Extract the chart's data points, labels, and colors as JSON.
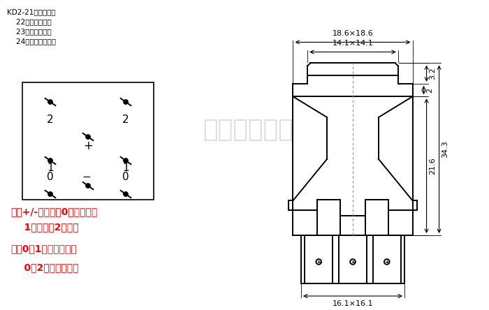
{
  "bg_color": "#ffffff",
  "text_color_black": "#000000",
  "text_color_red": "#ff0000",
  "text_color_watermark": "#c8c8c8",
  "title_lines": [
    [
      "KD2-21：带锁带灯",
      10,
      432
    ],
    [
      "    22：不带锁带灯",
      10,
      418
    ],
    [
      "    23：带锁不带灯",
      10,
      404
    ],
    [
      "    24：不带锁不带灯",
      10,
      390
    ]
  ],
  "note_lines": [
    [
      "注：+/-为灯脚、0为公共脚、",
      15,
      148
    ],
    [
      "    1为常闭、2为常开",
      15,
      126
    ],
    [
      "列：0和1接线按下断电",
      15,
      95
    ],
    [
      "    0和2接线按下通电",
      15,
      68
    ]
  ],
  "watermark": "南洋机电仪表",
  "dim_18_6": "18.6×18.6",
  "dim_14_1": "14.1×14.1",
  "dim_16_1": "16.1×16.1",
  "dim_3_2": "3.2",
  "dim_2": "2",
  "dim_21_6": "21.6",
  "dim_34_3": "34.3"
}
